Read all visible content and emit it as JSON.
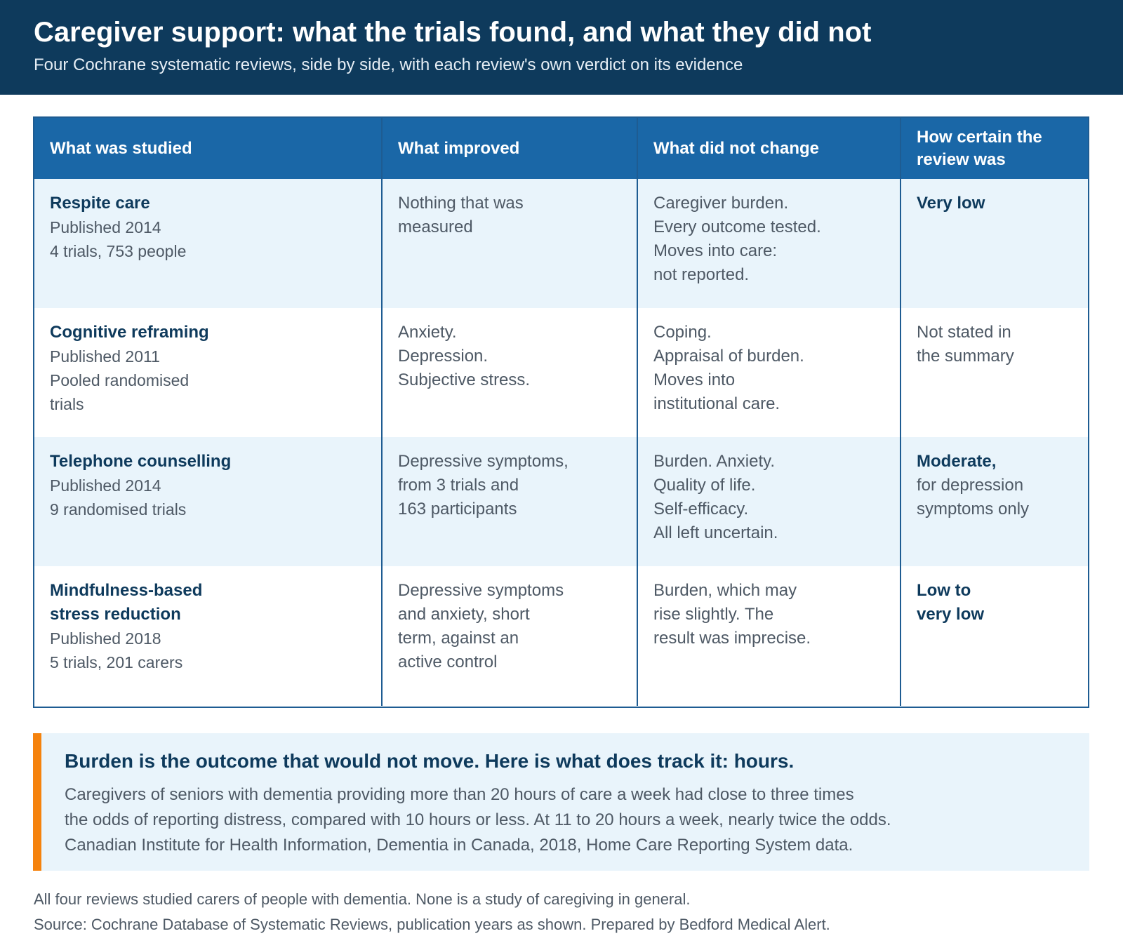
{
  "header": {
    "title": "Caregiver support: what the trials found, and what they did not",
    "subtitle": "Four Cochrane systematic reviews, side by side, with each review's own verdict on its evidence"
  },
  "table": {
    "columns": [
      "What was studied",
      "What improved",
      "What did not change",
      "How certain the review was"
    ],
    "rows": [
      {
        "name": "Respite care",
        "meta": [
          "Published 2014",
          "4 trials, 753 people"
        ],
        "improved": [
          "Nothing that was",
          "measured"
        ],
        "unchanged": [
          "Caregiver burden.",
          "Every outcome tested.",
          "Moves into care:",
          "not reported."
        ],
        "certainty_strong": "Very low",
        "certainty_lines": []
      },
      {
        "name": "Cognitive reframing",
        "meta": [
          "Published 2011",
          "Pooled randomised",
          "trials"
        ],
        "improved": [
          "Anxiety.",
          "Depression.",
          "Subjective stress."
        ],
        "unchanged": [
          "Coping.",
          "Appraisal of burden.",
          "Moves into",
          "institutional care."
        ],
        "certainty_strong": "",
        "certainty_lines": [
          "Not stated in",
          "the summary"
        ]
      },
      {
        "name": "Telephone counselling",
        "meta": [
          "Published 2014",
          "9 randomised trials"
        ],
        "improved": [
          "Depressive symptoms,",
          "from 3 trials and",
          "163 participants"
        ],
        "unchanged": [
          "Burden. Anxiety.",
          "Quality of life.",
          "Self-efficacy.",
          "All left uncertain."
        ],
        "certainty_strong": "Moderate,",
        "certainty_lines": [
          "for depression",
          "symptoms only"
        ]
      },
      {
        "name": "Mindfulness-based stress reduction",
        "meta": [
          "Published 2018",
          "5 trials, 201 carers"
        ],
        "improved": [
          "Depressive symptoms",
          "and anxiety, short",
          "term, against an",
          "active control"
        ],
        "unchanged": [
          "Burden, which may",
          "rise slightly. The",
          "result was imprecise."
        ],
        "certainty_strong": "Low to very low",
        "certainty_lines": []
      }
    ]
  },
  "callout": {
    "title": "Burden is the outcome that would not move. Here is what does track it: hours.",
    "lines": [
      "Caregivers of seniors with dementia providing more than 20 hours of care a week had close to three times",
      "the odds of reporting distress, compared with 10 hours or less. At 11 to 20 hours a week, nearly twice the odds.",
      "Canadian Institute for Health Information, Dementia in Canada, 2018, Home Care Reporting System data."
    ]
  },
  "footer": {
    "note": "All four reviews studied carers of people with dementia. None is a study of caregiving in general.",
    "source": "Source: Cochrane Database of Systematic Reviews, publication years as shown. Prepared by Bedford Medical Alert."
  },
  "colors": {
    "header_bg": "#0e3a5c",
    "table_header_bg": "#1a67a7",
    "row_shade": "#e9f4fb",
    "accent_bar": "#f5820d"
  }
}
